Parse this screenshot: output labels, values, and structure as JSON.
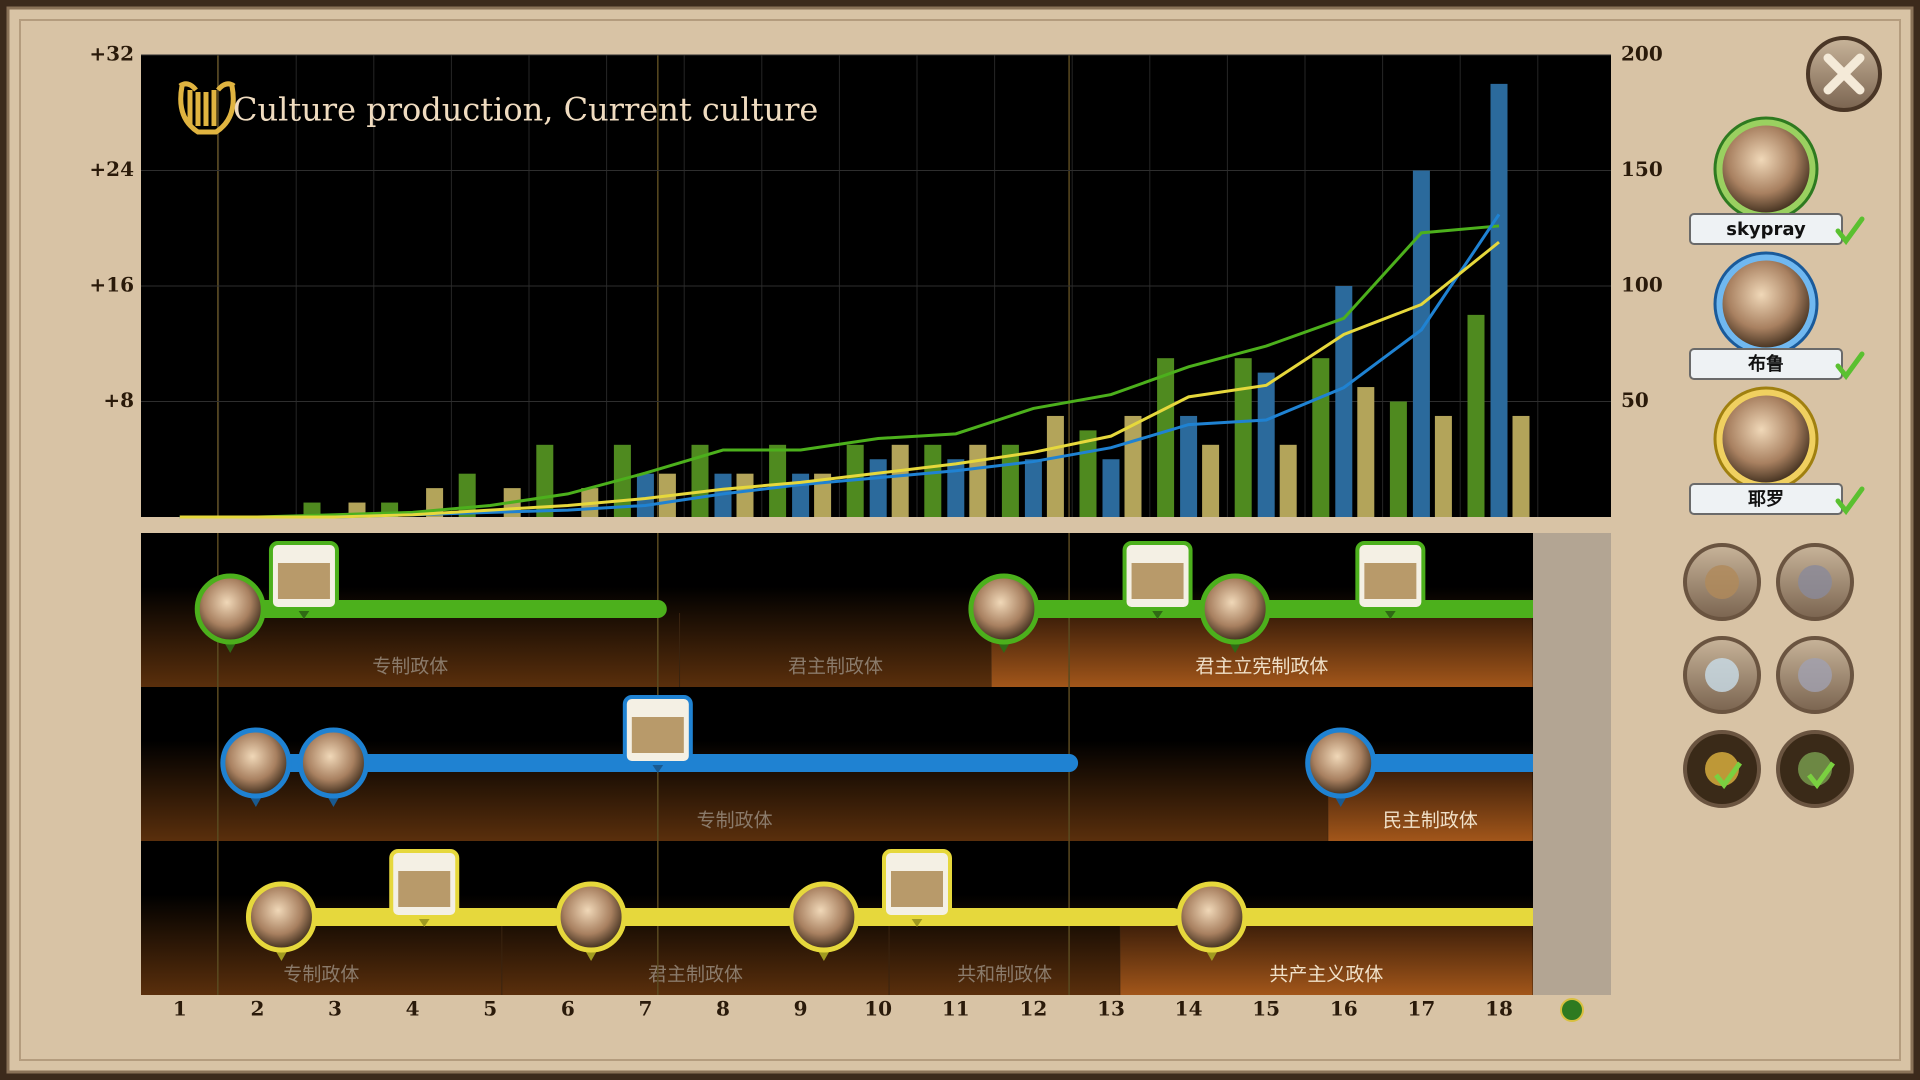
{
  "chart_data": {
    "type": "combo",
    "title": "Culture production, Current culture",
    "categories": [
      "1",
      "2",
      "3",
      "4",
      "5",
      "6",
      "7",
      "8",
      "9",
      "10",
      "11",
      "12",
      "13",
      "14",
      "15",
      "16",
      "17",
      "18"
    ],
    "ylim": [
      0,
      32
    ],
    "yticks": [
      {
        "value": 8,
        "label": "+8"
      },
      {
        "value": 16,
        "label": "+16"
      },
      {
        "value": 24,
        "label": "+24"
      },
      {
        "value": 32,
        "label": "+32"
      }
    ],
    "y2lim": [
      0,
      200
    ],
    "y2ticks": [
      50,
      100,
      150,
      200
    ],
    "grid": true,
    "series": [
      {
        "name": "skypray",
        "color": "#4f8a1f",
        "values": [
          0,
          0,
          1,
          1,
          3,
          5,
          5,
          5,
          5,
          5,
          5,
          5,
          6,
          11,
          11,
          11,
          8,
          14
        ]
      },
      {
        "name": "布鲁",
        "color": "#2b6a9c",
        "values": [
          0,
          0,
          0,
          0,
          0,
          0,
          3,
          3,
          3,
          4,
          4,
          4,
          4,
          7,
          10,
          16,
          24,
          30
        ]
      },
      {
        "name": "耶罗",
        "color": "#b3a45a",
        "values": [
          0,
          0,
          1,
          2,
          2,
          2,
          3,
          3,
          3,
          5,
          5,
          7,
          7,
          5,
          5,
          9,
          7,
          7
        ]
      },
      {
        "color": "#4cb01c",
        "axis": "y2",
        "values": [
          0,
          0,
          1,
          2,
          5,
          10,
          19,
          29,
          29,
          34,
          36,
          47,
          53,
          65,
          74,
          86,
          123,
          126
        ]
      },
      {
        "color": "#1f82d2",
        "axis": "y2",
        "values": [
          0,
          0,
          0,
          1,
          2,
          3,
          5,
          10,
          14,
          17,
          20,
          24,
          30,
          40,
          42,
          56,
          81,
          131
        ]
      },
      {
        "color": "#e6d83c",
        "axis": "y2",
        "values": [
          0,
          0,
          0,
          1,
          3,
          5,
          8,
          12,
          15,
          19,
          23,
          28,
          35,
          52,
          57,
          79,
          92,
          119
        ]
      }
    ]
  },
  "timelines": [
    {
      "governments": [
        "专制政体",
        "君主制政体",
        "君主立宪制政体"
      ]
    },
    {
      "governments": [
        "专制政体",
        "民主制政体"
      ]
    },
    {
      "governments": [
        "专制政体",
        "君主制政体",
        "共和制政体",
        "共产主义政体"
      ]
    }
  ]
}
